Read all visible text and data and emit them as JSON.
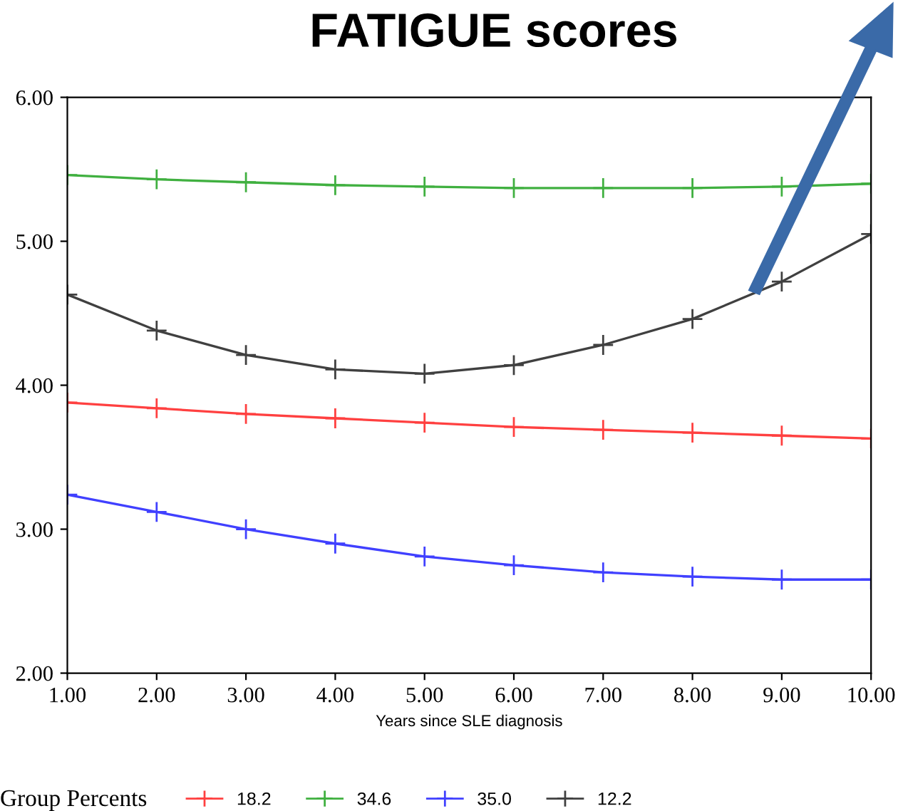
{
  "chart_data": {
    "type": "line",
    "title": "FATIGUE scores",
    "xlabel": "Years since SLE diagnosis",
    "legend_title": "Group Percents",
    "legend": "bottom",
    "x": [
      1,
      2,
      3,
      4,
      5,
      6,
      7,
      8,
      9,
      10
    ],
    "xlim": [
      1,
      10
    ],
    "xticks": [
      {
        "value": 1,
        "label": "1.00"
      },
      {
        "value": 2,
        "label": "2.00"
      },
      {
        "value": 3,
        "label": "3.00"
      },
      {
        "value": 4,
        "label": "4.00"
      },
      {
        "value": 5,
        "label": "5.00"
      },
      {
        "value": 6,
        "label": "6.00"
      },
      {
        "value": 7,
        "label": "7.00"
      },
      {
        "value": 8,
        "label": "8.00"
      },
      {
        "value": 9,
        "label": "9.00"
      },
      {
        "value": 10,
        "label": "10.00"
      }
    ],
    "ylim": [
      2,
      6
    ],
    "yticks": [
      {
        "value": 2,
        "label": "2.00"
      },
      {
        "value": 3,
        "label": "3.00"
      },
      {
        "value": 4,
        "label": "4.00"
      },
      {
        "value": 5,
        "label": "5.00"
      },
      {
        "value": 6,
        "label": "6.00"
      }
    ],
    "grid": false,
    "marker": "cross",
    "series": [
      {
        "name": "18.2",
        "color": "#ff4040",
        "values": [
          3.88,
          3.84,
          3.8,
          3.77,
          3.74,
          3.71,
          3.69,
          3.67,
          3.65,
          3.63
        ]
      },
      {
        "name": "34.6",
        "color": "#40b040",
        "values": [
          5.46,
          5.43,
          5.41,
          5.39,
          5.38,
          5.37,
          5.37,
          5.37,
          5.38,
          5.4
        ]
      },
      {
        "name": "35.0",
        "color": "#4040ff",
        "values": [
          3.24,
          3.12,
          3.0,
          2.9,
          2.81,
          2.75,
          2.7,
          2.67,
          2.65,
          2.65
        ]
      },
      {
        "name": "12.2",
        "color": "#404040",
        "values": [
          4.63,
          4.38,
          4.21,
          4.11,
          4.08,
          4.14,
          4.28,
          4.46,
          4.72,
          5.05
        ]
      }
    ]
  }
}
